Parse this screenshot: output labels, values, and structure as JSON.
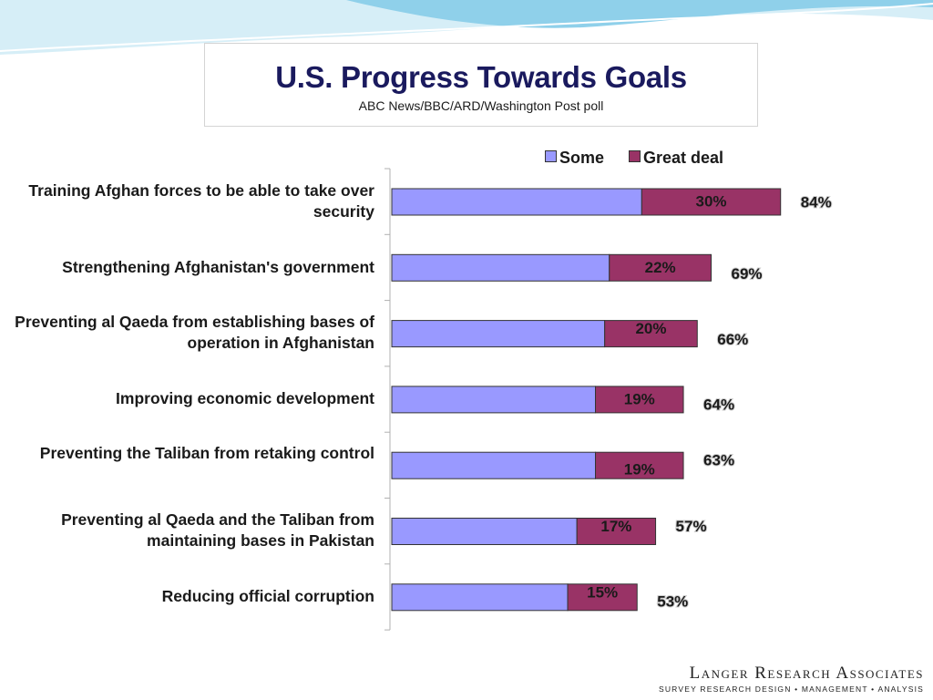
{
  "header": {
    "title": "U.S. Progress Towards Goals",
    "subtitle": "ABC News/BBC/ARD/Washington Post poll"
  },
  "branding": {
    "name": "Langer Research Associates",
    "tagline": "SURVEY RESEARCH DESIGN • MANAGEMENT • ANALYSIS"
  },
  "colors": {
    "some": "#9999ff",
    "great_deal": "#993366",
    "wave_light": "#cfeaf5",
    "wave_mid": "#7fc8e6"
  },
  "chart_data": {
    "type": "bar",
    "orientation": "horizontal",
    "stacked": true,
    "categories": [
      "Training Afghan forces to be able to take over security",
      "Strengthening Afghanistan's government",
      "Preventing al Qaeda from establishing bases of operation in Afghanistan",
      "Improving economic development",
      "Preventing the Taliban from retaking control",
      "Preventing al Qaeda and the Taliban from maintaining bases in Pakistan",
      "Reducing official corruption"
    ],
    "series": [
      {
        "name": "Some",
        "values": [
          54,
          47,
          46,
          44,
          44,
          40,
          38
        ]
      },
      {
        "name": "Great deal",
        "values": [
          30,
          22,
          20,
          19,
          19,
          17,
          15
        ]
      }
    ],
    "segment_labels": [
      "30%",
      "22%",
      "20%",
      "19%",
      "19%",
      "17%",
      "15%"
    ],
    "totals": [
      84,
      69,
      66,
      64,
      63,
      57,
      53
    ],
    "total_labels": [
      "84%",
      "69%",
      "66%",
      "64%",
      "63%",
      "57%",
      "53%"
    ],
    "legend": {
      "position": "top",
      "entries": [
        "Some",
        "Great deal"
      ]
    },
    "xlim": [
      0,
      100
    ],
    "grid": false,
    "xaxis_visible": false
  }
}
